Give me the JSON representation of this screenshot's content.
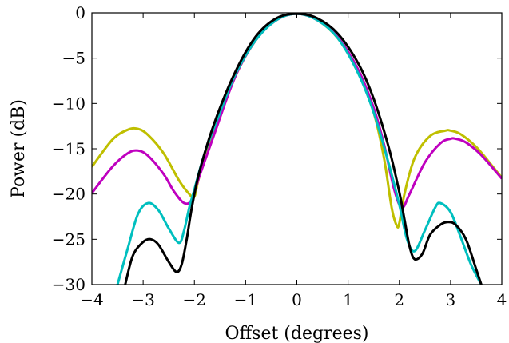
{
  "chart_data": {
    "type": "line",
    "title": "",
    "xlabel": "Offset (degrees)",
    "ylabel": "Power (dB)",
    "xlim": [
      -4,
      4
    ],
    "ylim": [
      -30,
      0
    ],
    "xticks": [
      "−4",
      "−3",
      "−2",
      "−1",
      "0",
      "1",
      "2",
      "3",
      "4"
    ],
    "yticks": [
      "0",
      "−5",
      "−10",
      "−15",
      "−20",
      "−25",
      "−30"
    ],
    "grid": false,
    "series": [
      {
        "color": "#bfbf00",
        "x": [
          -4.0,
          -3.6,
          -3.3,
          -3.1,
          -2.9,
          -2.6,
          -2.3,
          -2.1,
          -2.0,
          -1.9,
          -1.6,
          -1.2,
          -0.8,
          -0.4,
          0.0,
          0.4,
          0.8,
          1.2,
          1.5,
          1.7,
          1.85,
          1.95,
          2.0,
          2.1,
          2.3,
          2.6,
          2.9,
          3.0,
          3.2,
          3.5,
          3.8,
          4.0
        ],
        "y": [
          -17.0,
          -14.0,
          -12.9,
          -12.8,
          -13.5,
          -15.5,
          -18.5,
          -20.0,
          -20.3,
          -18.0,
          -13.0,
          -7.0,
          -3.0,
          -0.8,
          -0.1,
          -0.8,
          -2.8,
          -6.5,
          -11.0,
          -16.0,
          -21.5,
          -23.5,
          -23.2,
          -20.0,
          -16.0,
          -13.6,
          -13.0,
          -13.0,
          -13.4,
          -14.8,
          -16.8,
          -18.2
        ]
      },
      {
        "color": "#bf00bf",
        "x": [
          -4.0,
          -3.6,
          -3.3,
          -3.1,
          -2.9,
          -2.6,
          -2.4,
          -2.2,
          -2.05,
          -1.9,
          -1.6,
          -1.2,
          -0.8,
          -0.4,
          0.0,
          0.4,
          0.8,
          1.2,
          1.5,
          1.7,
          1.9,
          2.05,
          2.2,
          2.5,
          2.8,
          3.0,
          3.1,
          3.3,
          3.6,
          4.0
        ],
        "y": [
          -19.9,
          -17.0,
          -15.5,
          -15.2,
          -15.8,
          -17.8,
          -19.7,
          -21.0,
          -20.6,
          -18.0,
          -13.2,
          -7.0,
          -3.0,
          -0.8,
          -0.1,
          -0.8,
          -2.7,
          -6.3,
          -10.5,
          -14.5,
          -19.5,
          -21.5,
          -20.0,
          -16.5,
          -14.4,
          -13.9,
          -13.9,
          -14.3,
          -15.7,
          -18.3
        ]
      },
      {
        "color": "#00bfbf",
        "x": [
          -3.5,
          -3.3,
          -3.1,
          -2.9,
          -2.7,
          -2.5,
          -2.3,
          -2.2,
          -2.1,
          -2.0,
          -1.8,
          -1.5,
          -1.2,
          -0.8,
          -0.4,
          0.0,
          0.4,
          0.8,
          1.2,
          1.5,
          1.8,
          2.0,
          2.15,
          2.3,
          2.5,
          2.7,
          2.8,
          3.0,
          3.2,
          3.4,
          3.6
        ],
        "y": [
          -30.0,
          -26.0,
          -22.2,
          -21.0,
          -21.8,
          -23.8,
          -25.4,
          -24.0,
          -21.5,
          -19.5,
          -15.5,
          -11.0,
          -6.8,
          -3.0,
          -0.8,
          -0.1,
          -0.8,
          -2.8,
          -6.7,
          -11.0,
          -16.8,
          -21.2,
          -25.0,
          -26.3,
          -24.0,
          -21.5,
          -21.0,
          -22.0,
          -24.8,
          -27.8,
          -30.0
        ]
      },
      {
        "color": "#000000",
        "x": [
          -3.35,
          -3.2,
          -3.0,
          -2.85,
          -2.7,
          -2.5,
          -2.35,
          -2.25,
          -2.15,
          -2.05,
          -1.9,
          -1.6,
          -1.2,
          -0.8,
          -0.4,
          0.0,
          0.4,
          0.8,
          1.2,
          1.5,
          1.8,
          2.0,
          2.1,
          2.2,
          2.3,
          2.45,
          2.6,
          2.8,
          2.95,
          3.1,
          3.3,
          3.5,
          3.6
        ],
        "y": [
          -30.0,
          -26.8,
          -25.3,
          -25.0,
          -25.6,
          -27.5,
          -28.6,
          -27.8,
          -25.0,
          -21.5,
          -17.5,
          -12.0,
          -6.5,
          -2.6,
          -0.6,
          -0.1,
          -0.6,
          -2.3,
          -5.6,
          -9.5,
          -15.0,
          -19.8,
          -22.8,
          -25.8,
          -27.2,
          -26.6,
          -24.5,
          -23.4,
          -23.1,
          -23.4,
          -25.0,
          -28.3,
          -30.0
        ]
      }
    ]
  }
}
